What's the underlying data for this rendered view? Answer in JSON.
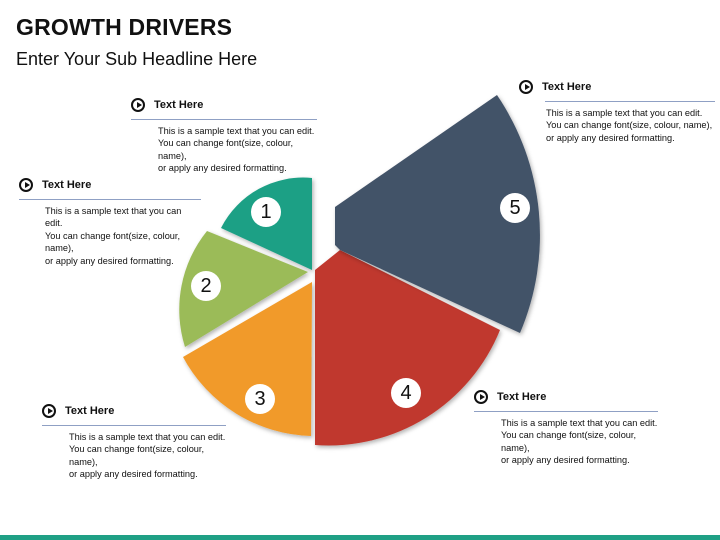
{
  "header": {
    "title": "GROWTH DRIVERS",
    "subtitle": "Enter Your Sub Headline Here"
  },
  "segments": [
    {
      "number": "1",
      "color": "#1fa085"
    },
    {
      "number": "2",
      "color": "#9bbb59"
    },
    {
      "number": "3",
      "color": "#f19a29"
    },
    {
      "number": "4",
      "color": "#c0392f"
    },
    {
      "number": "5",
      "color": "#435268"
    }
  ],
  "blocks": [
    {
      "title": "Text Here",
      "lines": [
        "This is a sample text that you can edit.",
        "You can change font(size, colour, name),",
        "or apply any desired formatting."
      ]
    },
    {
      "title": "Text Here",
      "lines": [
        "This is a sample text that you can edit.",
        "You can change font(size, colour, name),",
        "or apply any desired formatting."
      ]
    },
    {
      "title": "Text Here",
      "lines": [
        "This is a sample text that you can edit.",
        "You can change font(size, colour, name),",
        "or apply any desired formatting."
      ]
    },
    {
      "title": "Text Here",
      "lines": [
        "This is a sample text that you can edit.",
        "You can change font(size, colour, name),",
        "or apply any desired formatting."
      ]
    },
    {
      "title": "Text Here",
      "lines": [
        "This is a sample text that you can edit.",
        "You can change font(size, colour, name),",
        "or apply any desired formatting."
      ]
    }
  ]
}
